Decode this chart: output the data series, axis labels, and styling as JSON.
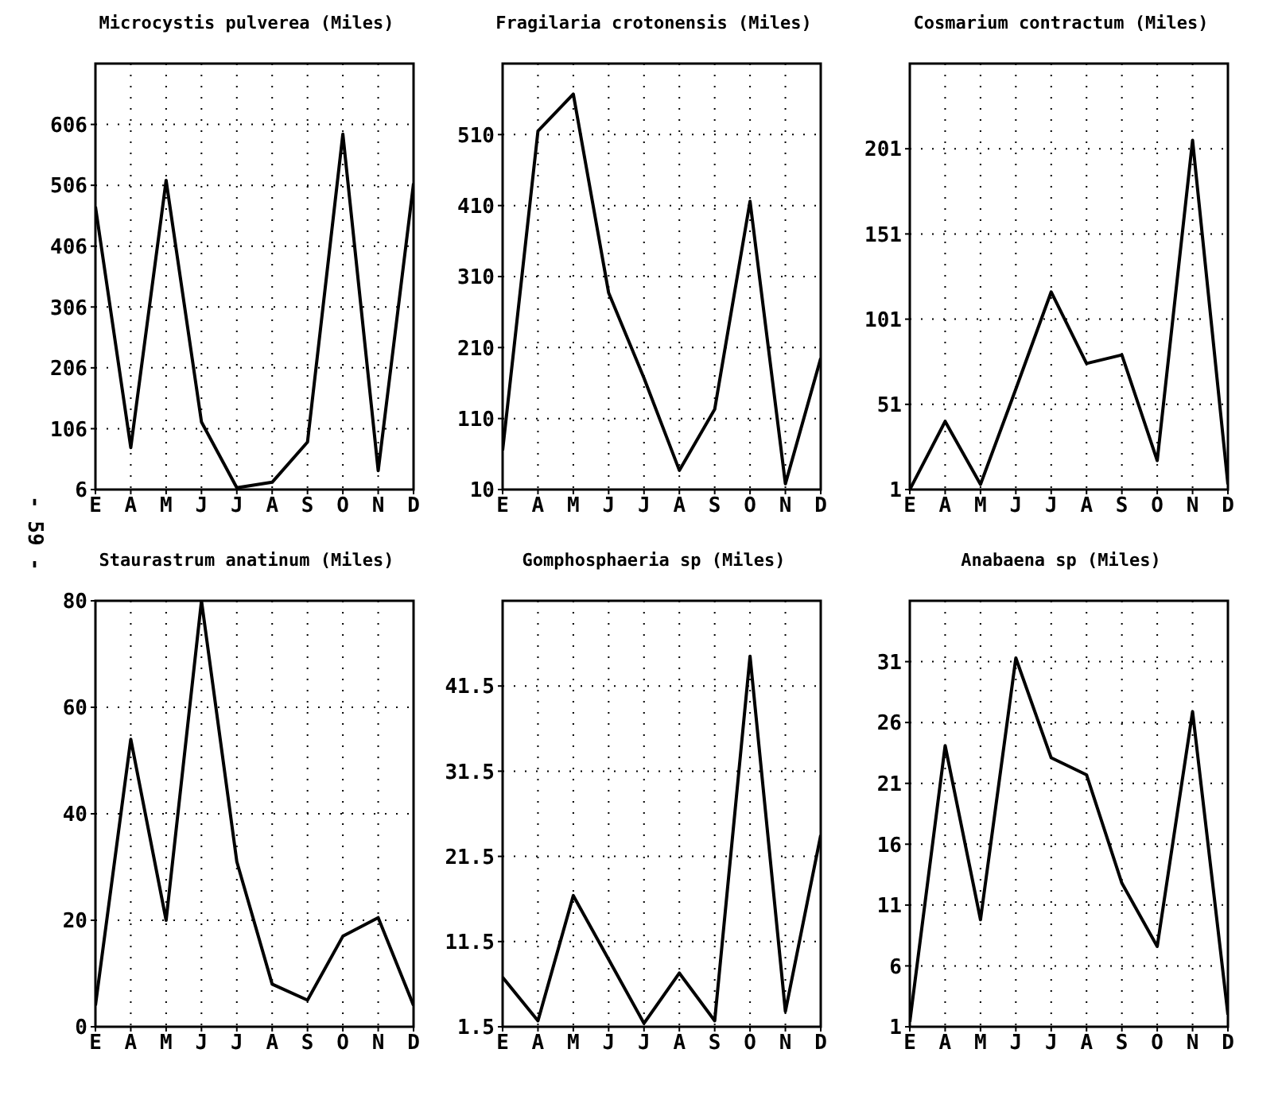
{
  "chart_data": [
    {
      "type": "line",
      "title": "Microcystis pulverea (Miles)",
      "categories": [
        "E",
        "A",
        "M",
        "J",
        "J",
        "A",
        "S",
        "O",
        "N",
        "D"
      ],
      "values": [
        471,
        75,
        514,
        117,
        9,
        18,
        84,
        590,
        37,
        509
      ],
      "color": "#000000",
      "ylim": [
        6,
        706
      ],
      "yticks": [
        6,
        106,
        206,
        306,
        406,
        506,
        606
      ],
      "grid": true,
      "annotations": [
        "- 59 -"
      ]
    },
    {
      "type": "line",
      "title": "Fragilaria crotonensis (Miles)",
      "categories": [
        "E",
        "A",
        "M",
        "J",
        "J",
        "A",
        "S",
        "O",
        "N",
        "D"
      ],
      "values": [
        65,
        515,
        567,
        287,
        167,
        37,
        123,
        416,
        18,
        195
      ],
      "color": "#000000",
      "ylim": [
        10,
        610
      ],
      "yticks": [
        10,
        110,
        210,
        310,
        410,
        510
      ],
      "grid": true
    },
    {
      "type": "line",
      "title": "Cosmarium contractum (Miles)",
      "categories": [
        "E",
        "A",
        "M",
        "J",
        "J",
        "A",
        "S",
        "O",
        "N",
        "D"
      ],
      "values": [
        1,
        41,
        4,
        60,
        117,
        75,
        80,
        18,
        206,
        4
      ],
      "color": "#000000",
      "ylim": [
        1,
        251
      ],
      "yticks": [
        1,
        51,
        101,
        151,
        201
      ],
      "grid": true
    },
    {
      "type": "line",
      "title": "Staurastrum anatinum (Miles)",
      "categories": [
        "E",
        "A",
        "M",
        "J",
        "J",
        "A",
        "S",
        "O",
        "N",
        "D"
      ],
      "values": [
        4,
        54,
        20,
        80,
        31,
        8,
        5,
        17,
        20.5,
        4
      ],
      "color": "#000000",
      "ylim": [
        0,
        80
      ],
      "yticks": [
        0,
        20,
        40,
        60,
        80
      ],
      "grid": true
    },
    {
      "type": "line",
      "title": "Gomphosphaeria sp (Miles)",
      "categories": [
        "E",
        "A",
        "M",
        "J",
        "J",
        "A",
        "S",
        "O",
        "N",
        "D"
      ],
      "values": [
        7.3,
        2.2,
        16.9,
        9.4,
        1.9,
        7.8,
        2.2,
        45,
        3.3,
        24
      ],
      "color": "#000000",
      "ylim": [
        1.5,
        51.5
      ],
      "yticks": [
        1.5,
        11.5,
        21.5,
        31.5,
        41.5
      ],
      "grid": true
    },
    {
      "type": "line",
      "title": "Anabaena sp (Miles)",
      "categories": [
        "E",
        "A",
        "M",
        "J",
        "J",
        "A",
        "S",
        "O",
        "N",
        "D"
      ],
      "values": [
        1.4,
        24.1,
        9.8,
        31.3,
        23.1,
        21.7,
        12.8,
        7.6,
        26.9,
        2
      ],
      "color": "#000000",
      "ylim": [
        1,
        36
      ],
      "yticks": [
        1,
        6,
        11,
        16,
        21,
        26,
        31
      ],
      "grid": true
    }
  ]
}
